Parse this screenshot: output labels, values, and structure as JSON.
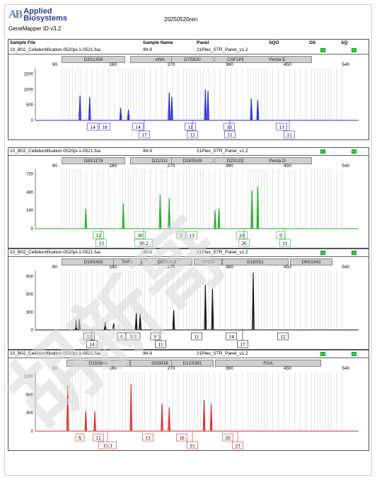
{
  "header": {
    "brand": "Applied Biosystems",
    "brand_line1": "Applied",
    "brand_line2": "Biosystems",
    "logo_mark": "AB",
    "app_version": "GeneMapper ID v3.2",
    "report_title": "20250520ren"
  },
  "column_headers": [
    "Sample File",
    "Sample Name",
    "Panel",
    "SQO",
    "OS",
    "SQ"
  ],
  "watermark_text": "胡新哥",
  "status_color": "#2ecc40",
  "panels": [
    {
      "sample_file": "10_B02_Cellidentification-0520pi-1-0521.fsa",
      "sample_name": "IM-9",
      "panel": "21Plex_STR_Panel_v1.2",
      "color": "#2a2ad6",
      "markers": [
        "D3S1358",
        "vWA",
        "D7S820",
        "CSF1PO",
        "Penta E"
      ],
      "x_ticks": [
        "90",
        "180",
        "270",
        "360",
        "450",
        "540"
      ],
      "y_ticks": [
        "1500",
        "1000",
        "500",
        "0"
      ],
      "y_max": 1700,
      "peaks": [
        {
          "x": 129,
          "h": 800
        },
        {
          "x": 144,
          "h": 750
        },
        {
          "x": 192,
          "h": 400
        },
        {
          "x": 204,
          "h": 350
        },
        {
          "x": 267,
          "h": 900
        },
        {
          "x": 271,
          "h": 750
        },
        {
          "x": 323,
          "h": 1000
        },
        {
          "x": 327,
          "h": 950
        },
        {
          "x": 394,
          "h": 700
        },
        {
          "x": 404,
          "h": 650
        }
      ],
      "alleles_row1": [
        "14",
        "18",
        "14",
        "11",
        "10",
        "13"
      ],
      "alleles_row2": [
        "17",
        "12",
        "11",
        "15"
      ]
    },
    {
      "sample_file": "10_B02_Cellidentification-0520pi-1-0521.fsa",
      "sample_name": "IM-9",
      "panel": "21Plex_STR_Panel_v1.2",
      "color": "#2aa82a",
      "markers": [
        "D8S1179",
        "D21S11",
        "D18S539",
        "D2S1338",
        "Penta D"
      ],
      "x_ticks": [
        "90",
        "180",
        "270",
        "360",
        "450",
        "540"
      ],
      "y_ticks": [
        "720",
        "480",
        "240",
        "0"
      ],
      "y_max": 780,
      "peaks": [
        {
          "x": 138,
          "h": 260
        },
        {
          "x": 196,
          "h": 330
        },
        {
          "x": 253,
          "h": 450
        },
        {
          "x": 267,
          "h": 400
        },
        {
          "x": 338,
          "h": 240
        },
        {
          "x": 344,
          "h": 260
        },
        {
          "x": 395,
          "h": 500
        },
        {
          "x": 404,
          "h": 550
        }
      ],
      "alleles_row1": [
        "12",
        "30",
        "9",
        "13",
        "24",
        "9"
      ],
      "alleles_row2": [
        "13",
        "30.2",
        "26",
        "11"
      ]
    },
    {
      "sample_file": "10_B02_Cellidentification-0520pi-1-0521.fsa",
      "sample_name": "IM-9",
      "panel": "21Plex_STR_Panel_v1.2",
      "color": "#111111",
      "markers": [
        "D19S433",
        "TH01",
        "D13S317",
        "TPOX",
        "D18S51",
        "D6S1043"
      ],
      "x_ticks": [
        "90",
        "180",
        "270",
        "360",
        "450",
        "540"
      ],
      "y_ticks": [
        "900",
        "600",
        "300",
        "0"
      ],
      "y_max": 1000,
      "peaks": [
        {
          "x": 123,
          "h": 170
        },
        {
          "x": 128,
          "h": 180
        },
        {
          "x": 168,
          "h": 130
        },
        {
          "x": 181,
          "h": 110
        },
        {
          "x": 216,
          "h": 280
        },
        {
          "x": 222,
          "h": 270
        },
        {
          "x": 274,
          "h": 330
        },
        {
          "x": 323,
          "h": 760
        },
        {
          "x": 334,
          "h": 690
        },
        {
          "x": 397,
          "h": 960
        }
      ],
      "alleles_row1": [
        "13",
        "6",
        "9.3",
        "9",
        "11",
        "14",
        "12"
      ],
      "alleles_row2": [
        "14",
        "11",
        "17"
      ]
    },
    {
      "sample_file": "10_B02_Cellidentification-0520pi-1-0521.fsa",
      "sample_name": "IM-9",
      "panel": "21Plex_STR_Panel_v1.2",
      "color": "#d63030",
      "markers": [
        "D15S656",
        "D5S818",
        "D12S391",
        "FGA"
      ],
      "x_ticks": [
        "90",
        "180",
        "270",
        "360",
        "450",
        "540"
      ],
      "y_ticks": [
        "1200",
        "800",
        "400",
        "0"
      ],
      "y_max": 1300,
      "peaks": [
        {
          "x": 110,
          "h": 1000
        },
        {
          "x": 138,
          "h": 440
        },
        {
          "x": 152,
          "h": 430
        },
        {
          "x": 208,
          "h": 1020
        },
        {
          "x": 256,
          "h": 600
        },
        {
          "x": 267,
          "h": 520
        },
        {
          "x": 321,
          "h": 680
        },
        {
          "x": 332,
          "h": 600
        }
      ],
      "alleles_row1": [
        "X",
        "12",
        "13",
        "18",
        "20"
      ],
      "alleles_row2": [
        "15.3",
        "21",
        "23"
      ]
    }
  ]
}
